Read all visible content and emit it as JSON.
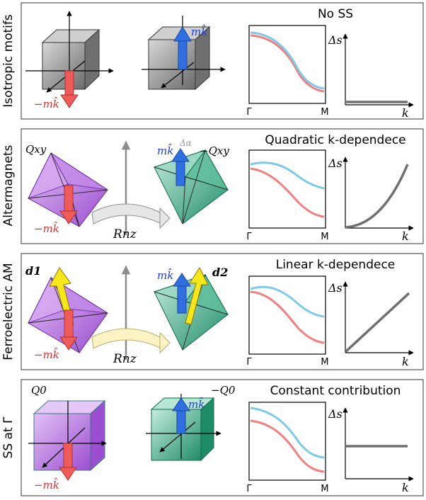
{
  "panels": [
    {
      "row_label": "Isotropic motifs",
      "title": "No SS",
      "motif_left_label": "−mk̂",
      "motif_right_label": "mk̂",
      "band_x_left": "Γ",
      "band_x_right": "M",
      "delta_y_label": "Δs",
      "delta_x_label": "k",
      "delta_trend": "zero"
    },
    {
      "row_label": "Altermagnets",
      "title": "Quadratic k-dependece",
      "motif_left_label": "−mk̂",
      "motif_right_label": "mk̂",
      "motif_left_tag": "Qxy",
      "motif_right_tag": "−Qxy",
      "angle_label": "Δα",
      "operation_label": "Rnz",
      "band_x_left": "Γ",
      "band_x_right": "M",
      "delta_y_label": "Δs",
      "delta_x_label": "k",
      "delta_trend": "quadratic"
    },
    {
      "row_label": "Ferroelectric AM",
      "title": "Linear k-dependece",
      "motif_left_label": "−mk̂",
      "motif_right_label": "mk̂",
      "motif_left_tag": "d1",
      "motif_right_tag": "d2",
      "operation_label": "Rnz",
      "band_x_left": "Γ",
      "band_x_right": "M",
      "delta_y_label": "Δs",
      "delta_x_label": "k",
      "delta_trend": "linear"
    },
    {
      "row_label": "SS at Γ",
      "title": "Constant contribution",
      "motif_left_label": "−mk̂",
      "motif_right_label": "mk̂",
      "motif_left_tag": "Q0",
      "motif_right_tag": "−Q0",
      "band_x_left": "Γ",
      "band_x_right": "M",
      "delta_y_label": "Δs",
      "delta_x_label": "k",
      "delta_trend": "constant"
    }
  ],
  "colors": {
    "spin_up_band": "#7ec8e8",
    "spin_down_band": "#f08080",
    "delta_curve": "#6e6e6e",
    "moment_down": "#ef5b5b",
    "moment_up": "#2f6fe0",
    "polar_arrow": "#f5e61e",
    "cube_gray": "#8a8a8a",
    "purple": "#b77be0",
    "green": "#2fa07a"
  }
}
